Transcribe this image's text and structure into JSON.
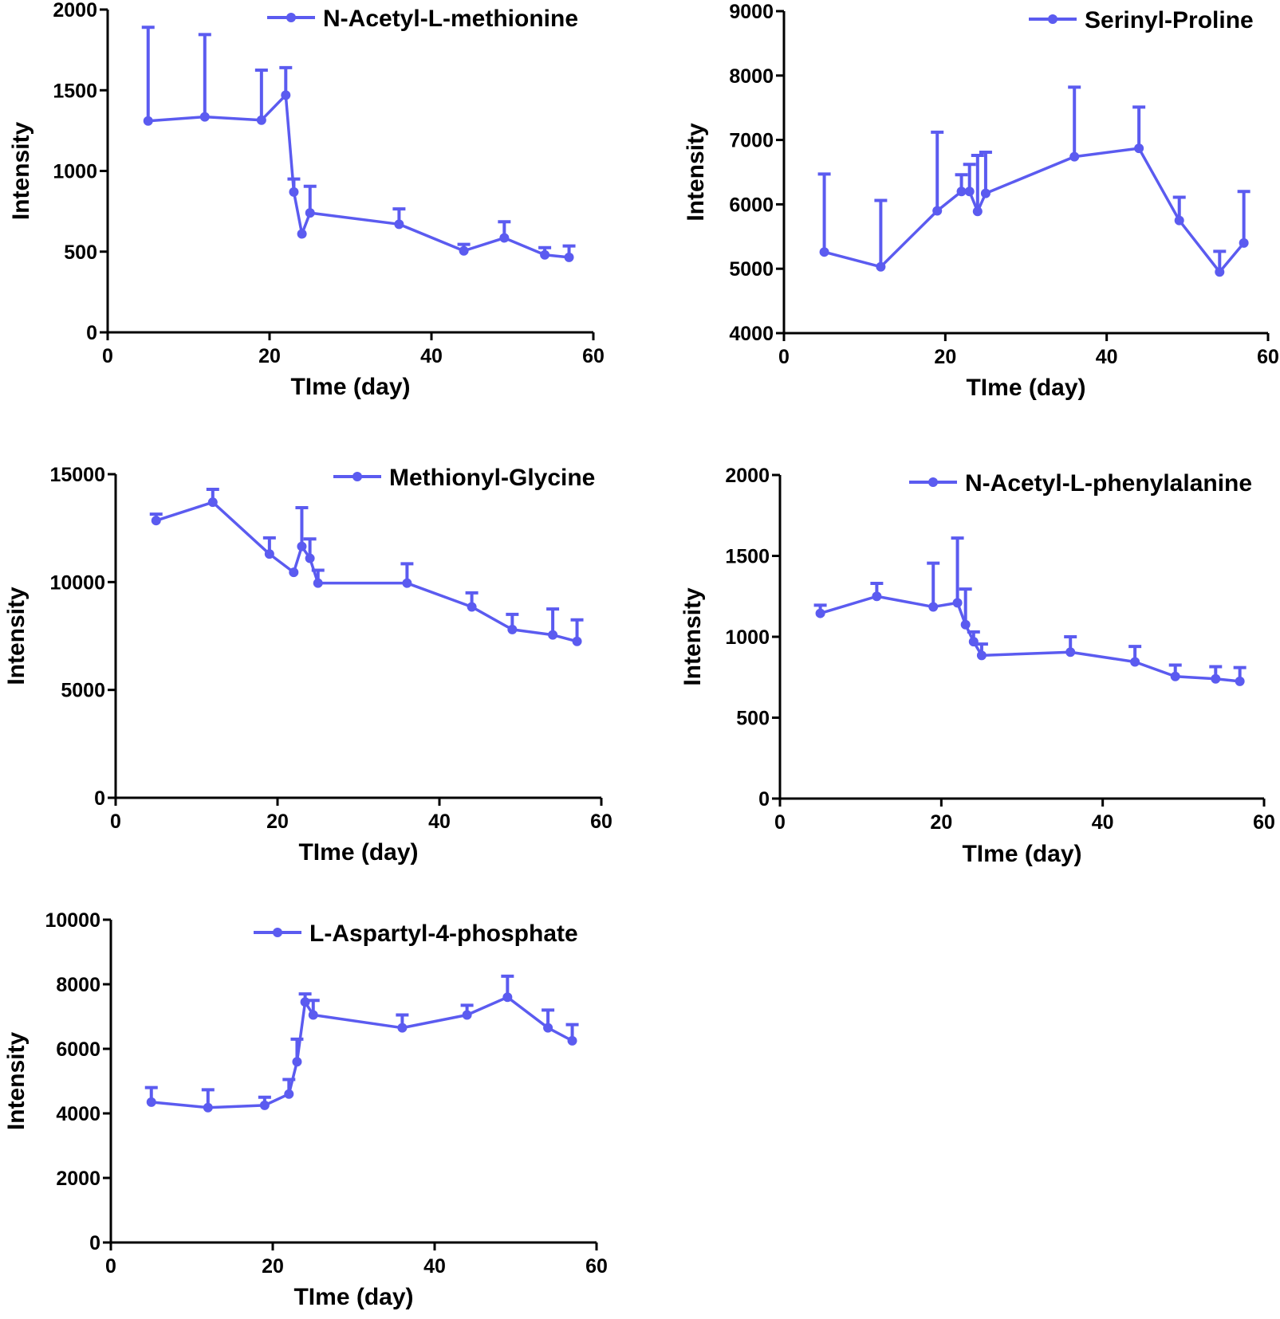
{
  "figure": {
    "series_color": "#5B5BF0",
    "axis_color": "#000000"
  },
  "chart_data": [
    {
      "type": "line",
      "title": "",
      "xlabel": "TIme (day)",
      "ylabel": "Intensity",
      "xlim": [
        0,
        60
      ],
      "ylim": [
        0,
        2000
      ],
      "x_ticks": [
        "0",
        "20",
        "40",
        "60"
      ],
      "y_ticks": [
        "0",
        "500",
        "1000",
        "1500",
        "2000"
      ],
      "legend": "top-right",
      "grid": false,
      "series": [
        {
          "name": "N-Acetyl-L-methionine",
          "x": [
            5,
            12,
            19,
            22,
            23,
            24,
            25,
            36,
            44,
            49,
            54,
            57
          ],
          "y": [
            1310,
            1335,
            1315,
            1470,
            870,
            610,
            740,
            670,
            505,
            585,
            480,
            465
          ],
          "error": [
            580,
            510,
            310,
            170,
            80,
            0,
            165,
            95,
            40,
            100,
            45,
            70
          ]
        }
      ]
    },
    {
      "type": "line",
      "title": "",
      "xlabel": "TIme (day)",
      "ylabel": "Intensity",
      "xlim": [
        0,
        60
      ],
      "ylim": [
        4000,
        9000
      ],
      "x_ticks": [
        "0",
        "20",
        "40",
        "60"
      ],
      "y_ticks": [
        "4000",
        "5000",
        "6000",
        "7000",
        "8000",
        "9000"
      ],
      "legend": "top-right",
      "grid": false,
      "series": [
        {
          "name": "Serinyl-Proline",
          "x": [
            5,
            12,
            19,
            22,
            23,
            24,
            25,
            36,
            44,
            49,
            54,
            57
          ],
          "y": [
            5260,
            5030,
            5900,
            6200,
            6200,
            5890,
            6170,
            6740,
            6870,
            5750,
            4950,
            5400
          ],
          "error": [
            1210,
            1030,
            1220,
            260,
            420,
            870,
            640,
            1080,
            640,
            360,
            320,
            800
          ]
        }
      ]
    },
    {
      "type": "line",
      "title": "",
      "xlabel": "TIme (day)",
      "ylabel": "Intensity",
      "xlim": [
        0,
        60
      ],
      "ylim": [
        0,
        15000
      ],
      "x_ticks": [
        "0",
        "20",
        "40",
        "60"
      ],
      "y_ticks": [
        "0",
        "5000",
        "10000",
        "15000"
      ],
      "legend": "top-right",
      "grid": false,
      "series": [
        {
          "name": "Methionyl-Glycine",
          "x": [
            5,
            12,
            19,
            22,
            23,
            24,
            25,
            36,
            44,
            49,
            54,
            57
          ],
          "y": [
            12850,
            13700,
            11300,
            10450,
            11650,
            11100,
            9950,
            9950,
            8850,
            7800,
            7550,
            7250
          ],
          "error": [
            300,
            600,
            750,
            0,
            1800,
            900,
            600,
            900,
            650,
            700,
            1200,
            1000
          ]
        }
      ]
    },
    {
      "type": "line",
      "title": "",
      "xlabel": "TIme (day)",
      "ylabel": "Intensity",
      "xlim": [
        0,
        60
      ],
      "ylim": [
        0,
        2000
      ],
      "x_ticks": [
        "0",
        "20",
        "40",
        "60"
      ],
      "y_ticks": [
        "0",
        "500",
        "1000",
        "1500",
        "2000"
      ],
      "legend": "top-right",
      "grid": false,
      "series": [
        {
          "name": "N-Acetyl-L-phenylalanine",
          "x": [
            5,
            12,
            19,
            22,
            23,
            24,
            25,
            36,
            44,
            49,
            54,
            57
          ],
          "y": [
            1145,
            1250,
            1185,
            1210,
            1075,
            970,
            885,
            905,
            845,
            755,
            740,
            725
          ],
          "error": [
            50,
            80,
            270,
            400,
            220,
            60,
            70,
            95,
            95,
            70,
            75,
            85
          ]
        }
      ]
    },
    {
      "type": "line",
      "title": "",
      "xlabel": "TIme (day)",
      "ylabel": "Intensity",
      "xlim": [
        0,
        60
      ],
      "ylim": [
        0,
        10000
      ],
      "x_ticks": [
        "0",
        "20",
        "40",
        "60"
      ],
      "y_ticks": [
        "0",
        "2000",
        "4000",
        "6000",
        "8000",
        "10000"
      ],
      "legend": "top-right",
      "grid": false,
      "series": [
        {
          "name": "L-Aspartyl-4-phosphate",
          "x": [
            5,
            12,
            19,
            22,
            23,
            24,
            25,
            36,
            44,
            49,
            54,
            57
          ],
          "y": [
            4350,
            4180,
            4250,
            4600,
            5600,
            7450,
            7050,
            6650,
            7050,
            7600,
            6650,
            6250
          ],
          "error": [
            450,
            550,
            250,
            450,
            700,
            250,
            450,
            400,
            300,
            650,
            550,
            500
          ]
        }
      ]
    }
  ]
}
